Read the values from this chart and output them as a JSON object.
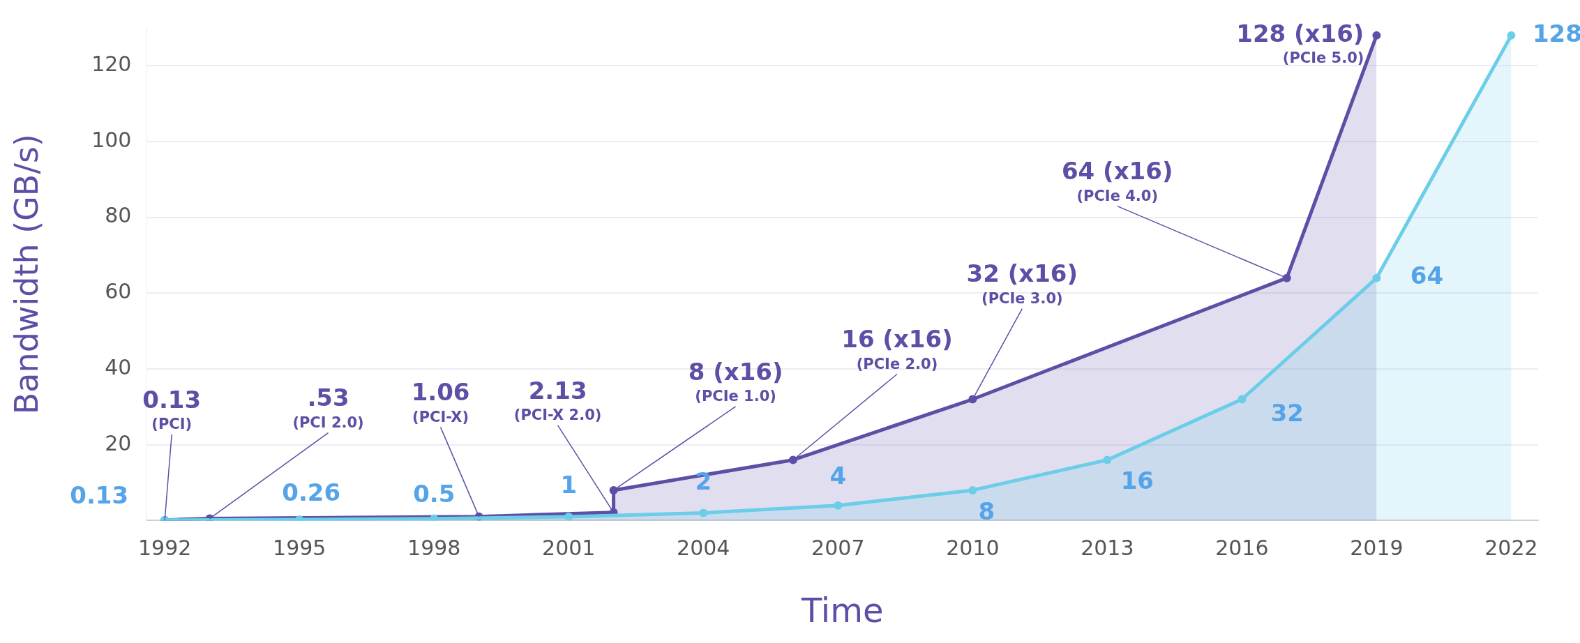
{
  "chart_data": {
    "type": "area",
    "xlabel": "Time",
    "ylabel": "Bandwidth (GB/s)",
    "xlim": [
      1991.6,
      2022.6
    ],
    "xticks": [
      1992,
      1995,
      1998,
      2001,
      2004,
      2007,
      2010,
      2013,
      2016,
      2019,
      2022
    ],
    "ylim": [
      0,
      130
    ],
    "yticks": [
      {
        "value": 0,
        "label": null
      },
      20,
      40,
      60,
      80,
      100,
      120
    ],
    "grid": "y",
    "legend": false,
    "marker": "circle",
    "line_style": "solid",
    "series": [
      {
        "color": "#6ccde8",
        "x": [
          1992,
          1995,
          1998,
          2001,
          2004,
          2007,
          2010,
          2013,
          2016,
          2019,
          2022
        ],
        "values": [
          0.13,
          0.26,
          0.5,
          1,
          2,
          4,
          8,
          16,
          32,
          64,
          128
        ],
        "value_labels": [
          "0.13",
          "0.26",
          "0.5",
          "1",
          "2",
          "4",
          "8",
          "16",
          "32",
          "64",
          "128"
        ]
      },
      {
        "color": "#5b4fa6",
        "x": [
          1992,
          1993,
          1999,
          2002,
          2002,
          2006,
          2010,
          2017,
          2019
        ],
        "values": [
          0.13,
          0.53,
          1.06,
          2.13,
          8,
          16,
          32,
          64,
          128
        ],
        "value_labels": [
          "0.13",
          ".53",
          "1.06",
          "2.13",
          "8 (x16)",
          "16 (x16)",
          "32 (x16)",
          "64 (x16)",
          "128 (x16)"
        ]
      }
    ],
    "annotations": [
      {
        "text": "(PCI)",
        "x": 1992,
        "y": 0.13
      },
      {
        "text": "(PCI 2.0)",
        "x": 1993,
        "y": 0.53
      },
      {
        "text": "(PCI-X)",
        "x": 1999,
        "y": 1.06
      },
      {
        "text": "(PCI-X 2.0)",
        "x": 2002,
        "y": 2.13
      },
      {
        "text": "(PCIe 1.0)",
        "x": 2002,
        "y": 8
      },
      {
        "text": "(PCIe 2.0)",
        "x": 2006,
        "y": 16
      },
      {
        "text": "(PCIe 3.0)",
        "x": 2010,
        "y": 32
      },
      {
        "text": "(PCIe 4.0)",
        "x": 2017,
        "y": 64
      },
      {
        "text": "(PCIe 5.0)",
        "x": 2019,
        "y": 128
      }
    ]
  }
}
